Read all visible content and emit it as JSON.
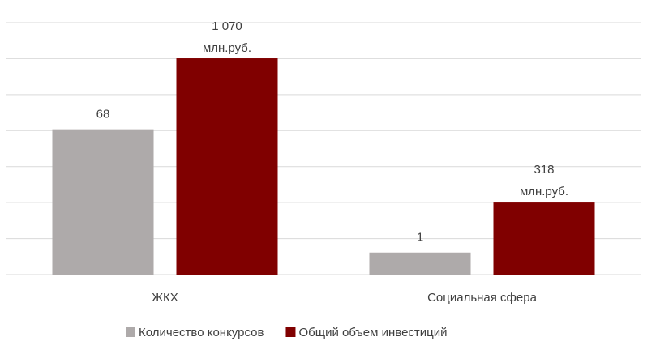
{
  "chart_data": {
    "type": "bar",
    "categories": [
      "ЖКХ",
      "Социальная сфера"
    ],
    "series": [
      {
        "name": "Количество конкурсов",
        "color": "#aeaaaa",
        "values": [
          68,
          1
        ]
      },
      {
        "name": "Общий объем инвестиций",
        "color": "#800000",
        "axis": "y2",
        "values": [
          1070,
          318
        ],
        "value_labels": [
          "1 070\nмлн.руб.",
          "318\nмлн.руб."
        ]
      }
    ],
    "ylim": [
      -11,
      126
    ],
    "y2lim": [
      -64,
      1257
    ],
    "grid": true,
    "legend": "bottom"
  }
}
